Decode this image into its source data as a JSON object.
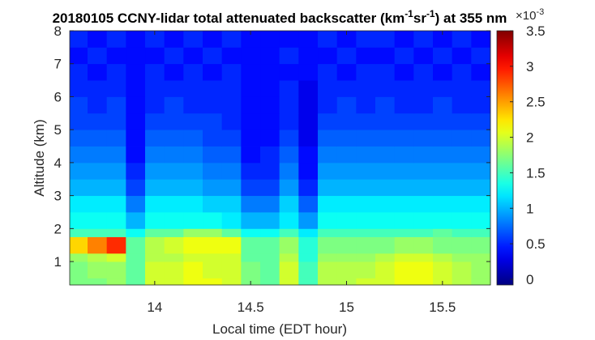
{
  "chart_data": {
    "type": "heatmap",
    "title": {
      "text": "20180105 CCNY-lidar total attenuated backscatter (km",
      "sup1": "-1",
      "mid": "sr",
      "sup2": "-1",
      "end": ") at 355 nm"
    },
    "x_label": "Local time (EDT hour)",
    "y_label": "Altitude (km)",
    "colormap": "jet",
    "xlim": [
      13.557,
      15.75
    ],
    "xticks": [
      14,
      14.5,
      15,
      15.5
    ],
    "ylim": [
      0.29,
      8
    ],
    "yticks": [
      1,
      2,
      3,
      4,
      5,
      6,
      7,
      8
    ],
    "clim": [
      -0.08,
      3.5
    ],
    "cticks": [
      0,
      0.5,
      1,
      1.5,
      2,
      2.5,
      3,
      3.5
    ],
    "colorbar_multiplier": {
      "base": "×10",
      "exponent": "-3"
    },
    "x_edges": [
      13.557,
      13.65,
      13.75,
      13.85,
      13.95,
      14.05,
      14.15,
      14.25,
      14.35,
      14.45,
      14.55,
      14.65,
      14.75,
      14.85,
      14.95,
      15.05,
      15.15,
      15.25,
      15.35,
      15.45,
      15.55,
      15.65,
      15.75
    ],
    "y_edges": [
      0.29,
      0.5,
      1.0,
      1.25,
      1.75,
      2.0,
      2.5,
      3,
      3.5,
      4,
      4.5,
      5,
      5.5,
      6,
      6.5,
      7,
      7.5,
      8
    ],
    "values": [
      [
        1.7,
        1.7,
        1.8,
        1.6,
        2.0,
        2.0,
        2.1,
        2.1,
        2.0,
        1.7,
        1.6,
        2.0,
        1.5,
        1.9,
        1.9,
        2.0,
        2.0,
        2.1,
        2.1,
        2.0,
        1.9,
        1.8
      ],
      [
        1.7,
        1.8,
        1.8,
        1.6,
        2.0,
        2.0,
        2.1,
        2.0,
        2.0,
        1.7,
        1.6,
        2.0,
        1.5,
        1.9,
        1.9,
        1.9,
        2.0,
        2.1,
        2.1,
        2.0,
        1.9,
        1.8
      ],
      [
        1.8,
        1.9,
        2.0,
        1.6,
        1.9,
        1.9,
        2.0,
        2.0,
        2.0,
        1.6,
        1.6,
        1.9,
        1.4,
        1.8,
        1.8,
        1.8,
        1.9,
        2.0,
        2.0,
        1.9,
        1.8,
        1.8
      ],
      [
        2.3,
        2.6,
        2.9,
        1.6,
        1.9,
        2.0,
        2.1,
        2.1,
        2.1,
        1.6,
        1.6,
        1.8,
        1.4,
        1.7,
        1.7,
        1.7,
        1.7,
        1.8,
        1.8,
        1.7,
        1.7,
        1.7
      ],
      [
        1.5,
        1.5,
        1.5,
        1.3,
        1.6,
        1.6,
        1.8,
        1.8,
        1.6,
        1.3,
        1.3,
        1.5,
        1.2,
        1.5,
        1.5,
        1.5,
        1.5,
        1.5,
        1.5,
        1.6,
        1.5,
        1.5
      ],
      [
        1.3,
        1.3,
        1.3,
        1.0,
        1.3,
        1.3,
        1.3,
        1.3,
        1.2,
        1.0,
        1.0,
        1.2,
        0.9,
        1.3,
        1.3,
        1.3,
        1.3,
        1.3,
        1.3,
        1.3,
        1.3,
        1.3
      ],
      [
        1.2,
        1.2,
        1.2,
        0.8,
        1.2,
        1.2,
        1.2,
        1.1,
        1.1,
        0.8,
        0.8,
        1.1,
        0.7,
        1.2,
        1.2,
        1.2,
        1.2,
        1.2,
        1.2,
        1.2,
        1.2,
        1.2
      ],
      [
        1.0,
        1.0,
        1.0,
        0.6,
        1.0,
        1.0,
        1.0,
        0.9,
        0.9,
        0.6,
        0.6,
        0.9,
        0.5,
        1.0,
        1.0,
        1.0,
        1.0,
        1.0,
        1.0,
        1.0,
        1.0,
        1.0
      ],
      [
        0.9,
        0.9,
        0.9,
        0.5,
        0.9,
        0.9,
        0.9,
        0.8,
        0.8,
        0.5,
        0.5,
        0.8,
        0.4,
        0.9,
        0.9,
        0.9,
        0.9,
        0.9,
        0.9,
        0.9,
        0.9,
        0.9
      ],
      [
        0.8,
        0.8,
        0.8,
        0.4,
        0.8,
        0.8,
        0.8,
        0.7,
        0.7,
        0.4,
        0.5,
        0.7,
        0.4,
        0.8,
        0.8,
        0.8,
        0.8,
        0.8,
        0.8,
        0.8,
        0.8,
        0.8
      ],
      [
        0.7,
        0.7,
        0.7,
        0.4,
        0.7,
        0.7,
        0.7,
        0.6,
        0.6,
        0.4,
        0.4,
        0.6,
        0.3,
        0.7,
        0.7,
        0.7,
        0.7,
        0.7,
        0.7,
        0.7,
        0.7,
        0.7
      ],
      [
        0.6,
        0.6,
        0.6,
        0.4,
        0.6,
        0.6,
        0.6,
        0.6,
        0.5,
        0.4,
        0.4,
        0.5,
        0.3,
        0.6,
        0.6,
        0.6,
        0.6,
        0.6,
        0.6,
        0.6,
        0.6,
        0.6
      ],
      [
        0.6,
        0.5,
        0.6,
        0.4,
        0.5,
        0.6,
        0.5,
        0.5,
        0.5,
        0.4,
        0.4,
        0.5,
        0.3,
        0.5,
        0.6,
        0.5,
        0.6,
        0.5,
        0.5,
        0.6,
        0.5,
        0.5
      ],
      [
        0.5,
        0.5,
        0.5,
        0.4,
        0.5,
        0.5,
        0.5,
        0.5,
        0.5,
        0.4,
        0.4,
        0.5,
        0.3,
        0.5,
        0.5,
        0.5,
        0.5,
        0.5,
        0.5,
        0.5,
        0.5,
        0.5
      ],
      [
        0.5,
        0.4,
        0.5,
        0.4,
        0.5,
        0.4,
        0.5,
        0.4,
        0.5,
        0.4,
        0.4,
        0.4,
        0.4,
        0.5,
        0.4,
        0.5,
        0.5,
        0.4,
        0.5,
        0.4,
        0.5,
        0.4
      ],
      [
        0.4,
        0.5,
        0.4,
        0.4,
        0.4,
        0.5,
        0.4,
        0.5,
        0.4,
        0.4,
        0.4,
        0.5,
        0.4,
        0.4,
        0.5,
        0.4,
        0.4,
        0.5,
        0.4,
        0.5,
        0.4,
        0.5
      ],
      [
        0.5,
        0.4,
        0.5,
        0.4,
        0.5,
        0.4,
        0.5,
        0.4,
        0.5,
        0.4,
        0.4,
        0.4,
        0.4,
        0.5,
        0.4,
        0.5,
        0.5,
        0.4,
        0.5,
        0.4,
        0.5,
        0.4
      ]
    ]
  }
}
